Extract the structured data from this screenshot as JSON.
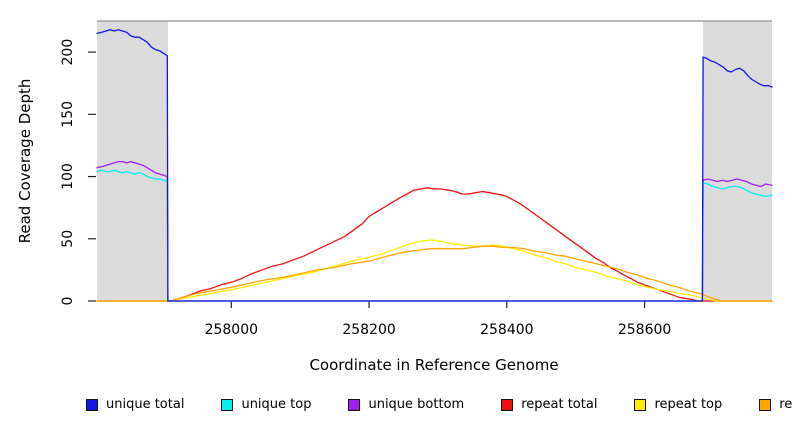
{
  "figure": {
    "y_axis": {
      "title": "Read Coverage Depth"
    },
    "x_axis": {
      "title": "Coordinate in Reference Genome"
    },
    "legend": {
      "items": [
        {
          "label": "unique total",
          "color": "#1414E6"
        },
        {
          "label": "unique top",
          "color": "#00EEEE"
        },
        {
          "label": "unique bottom",
          "color": "#A020F0"
        },
        {
          "label": "repeat total",
          "color": "#F21111"
        },
        {
          "label": "repeat top",
          "color": "#FFEB00"
        },
        {
          "label": "repeat bottom",
          "color": "#FFA500"
        }
      ]
    },
    "colors": {
      "shaded_region_fill": "#DBDBDB",
      "plot_top_border": "#8F8F8F",
      "tick": "#222222"
    }
  },
  "chart_data": {
    "type": "line",
    "title": "",
    "xlabel": "Coordinate in Reference Genome",
    "ylabel": "Read Coverage Depth",
    "xlim": [
      257805,
      258785
    ],
    "ylim": [
      0,
      225
    ],
    "grid": false,
    "legend_position": "bottom",
    "x_ticks": [
      "258000",
      "258200",
      "258400",
      "258600"
    ],
    "x_tick_values": [
      258000,
      258200,
      258400,
      258600
    ],
    "y_ticks": [
      "0",
      "50",
      "100",
      "150",
      "200"
    ],
    "y_tick_values": [
      0,
      50,
      100,
      150,
      200
    ],
    "shaded_regions": [
      {
        "x0": 257805,
        "x1": 257908
      },
      {
        "x0": 258685,
        "x1": 258785
      }
    ],
    "series": [
      {
        "name": "repeat total",
        "color": "#F21111",
        "points": [
          [
            257805,
            0
          ],
          [
            257912,
            0
          ],
          [
            257925,
            2
          ],
          [
            257940,
            5
          ],
          [
            257955,
            8
          ],
          [
            257970,
            10
          ],
          [
            257985,
            13
          ],
          [
            258000,
            15
          ],
          [
            258015,
            18
          ],
          [
            258030,
            22
          ],
          [
            258045,
            25
          ],
          [
            258060,
            28
          ],
          [
            258075,
            30
          ],
          [
            258090,
            33
          ],
          [
            258105,
            36
          ],
          [
            258120,
            40
          ],
          [
            258135,
            44
          ],
          [
            258150,
            48
          ],
          [
            258165,
            52
          ],
          [
            258180,
            58
          ],
          [
            258190,
            62
          ],
          [
            258200,
            68
          ],
          [
            258215,
            73
          ],
          [
            258230,
            78
          ],
          [
            258245,
            83
          ],
          [
            258255,
            86
          ],
          [
            258265,
            89
          ],
          [
            258275,
            90
          ],
          [
            258285,
            91
          ],
          [
            258295,
            90
          ],
          [
            258305,
            90
          ],
          [
            258315,
            89
          ],
          [
            258325,
            88
          ],
          [
            258335,
            86
          ],
          [
            258345,
            86
          ],
          [
            258355,
            87
          ],
          [
            258365,
            88
          ],
          [
            258375,
            87
          ],
          [
            258385,
            86
          ],
          [
            258395,
            85
          ],
          [
            258400,
            84
          ],
          [
            258410,
            81
          ],
          [
            258420,
            78
          ],
          [
            258430,
            74
          ],
          [
            258440,
            70
          ],
          [
            258450,
            66
          ],
          [
            258460,
            62
          ],
          [
            258470,
            58
          ],
          [
            258480,
            54
          ],
          [
            258490,
            50
          ],
          [
            258500,
            46
          ],
          [
            258510,
            42
          ],
          [
            258520,
            38
          ],
          [
            258530,
            34
          ],
          [
            258540,
            31
          ],
          [
            258550,
            27
          ],
          [
            258560,
            24
          ],
          [
            258570,
            21
          ],
          [
            258580,
            18
          ],
          [
            258590,
            15
          ],
          [
            258600,
            13
          ],
          [
            258610,
            11
          ],
          [
            258620,
            9
          ],
          [
            258630,
            7
          ],
          [
            258640,
            5
          ],
          [
            258650,
            3
          ],
          [
            258660,
            2
          ],
          [
            258670,
            1
          ],
          [
            258678,
            0
          ],
          [
            258785,
            0
          ]
        ]
      },
      {
        "name": "repeat top",
        "color": "#FFEB00",
        "points": [
          [
            257805,
            0
          ],
          [
            257912,
            0
          ],
          [
            257930,
            2
          ],
          [
            257950,
            4
          ],
          [
            257970,
            6
          ],
          [
            258000,
            9
          ],
          [
            258025,
            12
          ],
          [
            258050,
            15
          ],
          [
            258075,
            18
          ],
          [
            258100,
            21
          ],
          [
            258125,
            24
          ],
          [
            258150,
            28
          ],
          [
            258175,
            32
          ],
          [
            258200,
            35
          ],
          [
            258220,
            38
          ],
          [
            258240,
            42
          ],
          [
            258260,
            46
          ],
          [
            258275,
            48
          ],
          [
            258290,
            49
          ],
          [
            258305,
            48
          ],
          [
            258320,
            46
          ],
          [
            258335,
            45
          ],
          [
            258350,
            44
          ],
          [
            258365,
            44
          ],
          [
            258380,
            45
          ],
          [
            258395,
            44
          ],
          [
            258410,
            42
          ],
          [
            258425,
            40
          ],
          [
            258440,
            37
          ],
          [
            258455,
            35
          ],
          [
            258470,
            32
          ],
          [
            258485,
            30
          ],
          [
            258500,
            27
          ],
          [
            258515,
            25
          ],
          [
            258530,
            23
          ],
          [
            258545,
            20
          ],
          [
            258560,
            18
          ],
          [
            258575,
            16
          ],
          [
            258590,
            13
          ],
          [
            258605,
            11
          ],
          [
            258620,
            9
          ],
          [
            258635,
            8
          ],
          [
            258650,
            6
          ],
          [
            258665,
            5
          ],
          [
            258680,
            3
          ],
          [
            258695,
            1
          ],
          [
            258703,
            0
          ],
          [
            258785,
            0
          ]
        ]
      },
      {
        "name": "repeat bottom",
        "color": "#FFA500",
        "points": [
          [
            257805,
            0
          ],
          [
            257912,
            0
          ],
          [
            257930,
            3
          ],
          [
            257950,
            6
          ],
          [
            257970,
            8
          ],
          [
            258000,
            11
          ],
          [
            258025,
            14
          ],
          [
            258050,
            17
          ],
          [
            258075,
            19
          ],
          [
            258100,
            22
          ],
          [
            258125,
            25
          ],
          [
            258150,
            27
          ],
          [
            258175,
            30
          ],
          [
            258200,
            32
          ],
          [
            258220,
            35
          ],
          [
            258240,
            38
          ],
          [
            258260,
            40
          ],
          [
            258275,
            41
          ],
          [
            258290,
            42
          ],
          [
            258305,
            42
          ],
          [
            258320,
            42
          ],
          [
            258335,
            42
          ],
          [
            258350,
            43
          ],
          [
            258365,
            44
          ],
          [
            258380,
            44
          ],
          [
            258395,
            43
          ],
          [
            258410,
            43
          ],
          [
            258425,
            42
          ],
          [
            258440,
            40
          ],
          [
            258455,
            39
          ],
          [
            258470,
            37
          ],
          [
            258485,
            36
          ],
          [
            258500,
            34
          ],
          [
            258515,
            32
          ],
          [
            258530,
            30
          ],
          [
            258545,
            28
          ],
          [
            258560,
            26
          ],
          [
            258575,
            23
          ],
          [
            258590,
            21
          ],
          [
            258605,
            18
          ],
          [
            258620,
            16
          ],
          [
            258635,
            13
          ],
          [
            258650,
            11
          ],
          [
            258665,
            8
          ],
          [
            258680,
            6
          ],
          [
            258695,
            3
          ],
          [
            258705,
            1
          ],
          [
            258712,
            0
          ],
          [
            258785,
            0
          ]
        ]
      },
      {
        "name": "unique bottom",
        "color": "#A020F0",
        "points": [
          [
            257805,
            107
          ],
          [
            257812,
            108
          ],
          [
            257818,
            109
          ],
          [
            257824,
            110
          ],
          [
            257830,
            111
          ],
          [
            257836,
            112
          ],
          [
            257842,
            112
          ],
          [
            257848,
            111
          ],
          [
            257854,
            112
          ],
          [
            257860,
            111
          ],
          [
            257866,
            110
          ],
          [
            257872,
            109
          ],
          [
            257878,
            107
          ],
          [
            257884,
            105
          ],
          [
            257890,
            103
          ],
          [
            257896,
            102
          ],
          [
            257902,
            101
          ],
          [
            257907,
            100
          ],
          [
            257908,
            0
          ],
          [
            258684,
            0
          ],
          [
            258685,
            97
          ],
          [
            258692,
            98
          ],
          [
            258699,
            97
          ],
          [
            258706,
            96
          ],
          [
            258713,
            97
          ],
          [
            258720,
            96
          ],
          [
            258727,
            97
          ],
          [
            258734,
            98
          ],
          [
            258741,
            97
          ],
          [
            258748,
            96
          ],
          [
            258755,
            94
          ],
          [
            258762,
            93
          ],
          [
            258769,
            92
          ],
          [
            258776,
            94
          ],
          [
            258785,
            93
          ]
        ]
      },
      {
        "name": "unique top",
        "color": "#00EEEE",
        "points": [
          [
            257805,
            104
          ],
          [
            257812,
            105
          ],
          [
            257818,
            104
          ],
          [
            257824,
            104
          ],
          [
            257830,
            105
          ],
          [
            257836,
            104
          ],
          [
            257842,
            103
          ],
          [
            257848,
            104
          ],
          [
            257854,
            103
          ],
          [
            257860,
            102
          ],
          [
            257866,
            103
          ],
          [
            257872,
            102
          ],
          [
            257878,
            100
          ],
          [
            257884,
            99
          ],
          [
            257890,
            98
          ],
          [
            257896,
            98
          ],
          [
            257902,
            97
          ],
          [
            257907,
            96
          ],
          [
            257908,
            0
          ],
          [
            258684,
            0
          ],
          [
            258685,
            95
          ],
          [
            258692,
            94
          ],
          [
            258699,
            92
          ],
          [
            258706,
            91
          ],
          [
            258713,
            90
          ],
          [
            258720,
            91
          ],
          [
            258727,
            92
          ],
          [
            258734,
            92
          ],
          [
            258741,
            91
          ],
          [
            258748,
            89
          ],
          [
            258755,
            87
          ],
          [
            258762,
            86
          ],
          [
            258769,
            85
          ],
          [
            258776,
            84
          ],
          [
            258785,
            85
          ]
        ]
      },
      {
        "name": "unique total",
        "color": "#1414E6",
        "points": [
          [
            257805,
            215
          ],
          [
            257812,
            216
          ],
          [
            257818,
            217
          ],
          [
            257824,
            218
          ],
          [
            257830,
            217
          ],
          [
            257836,
            218
          ],
          [
            257842,
            217
          ],
          [
            257848,
            216
          ],
          [
            257854,
            213
          ],
          [
            257860,
            212
          ],
          [
            257866,
            212
          ],
          [
            257872,
            210
          ],
          [
            257878,
            208
          ],
          [
            257884,
            204
          ],
          [
            257890,
            202
          ],
          [
            257896,
            201
          ],
          [
            257902,
            199
          ],
          [
            257907,
            197
          ],
          [
            257908,
            0
          ],
          [
            258684,
            0
          ],
          [
            258685,
            196
          ],
          [
            258690,
            195
          ],
          [
            258696,
            193
          ],
          [
            258702,
            192
          ],
          [
            258708,
            190
          ],
          [
            258714,
            188
          ],
          [
            258720,
            185
          ],
          [
            258726,
            184
          ],
          [
            258732,
            186
          ],
          [
            258738,
            187
          ],
          [
            258744,
            185
          ],
          [
            258750,
            181
          ],
          [
            258756,
            178
          ],
          [
            258762,
            176
          ],
          [
            258768,
            174
          ],
          [
            258774,
            173
          ],
          [
            258780,
            173
          ],
          [
            258785,
            172
          ]
        ]
      }
    ]
  }
}
